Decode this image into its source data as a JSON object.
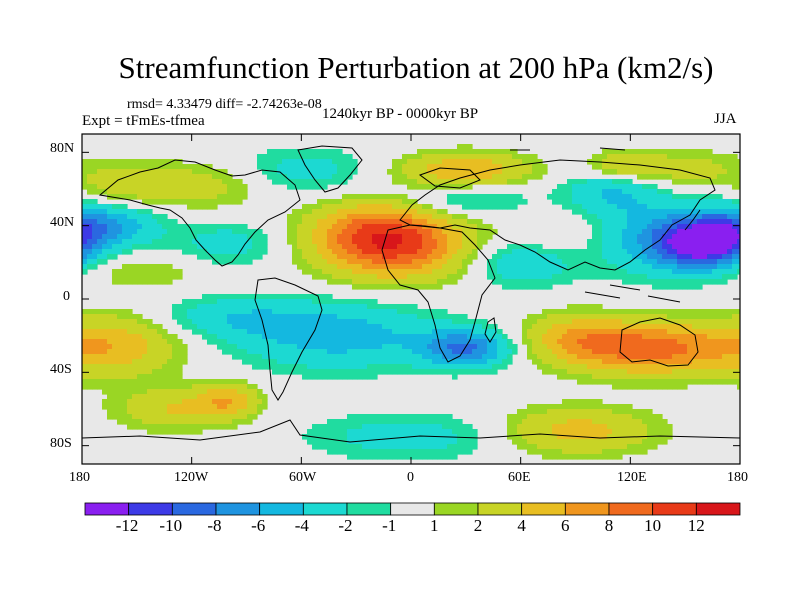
{
  "header": {
    "title": "Streamfunction Perturbation at 200 hPa (km2/s)",
    "rmsd_line": "rmsd= 4.33479 diff= -2.74263e-08",
    "experiment": "Expt = tFmEs-tfmea",
    "period": "1240kyr BP - 0000kyr BP",
    "season": "JJA"
  },
  "axes": {
    "lat_labels": [
      "80N",
      "40N",
      "0",
      "40S",
      "80S"
    ],
    "lon_labels": [
      "180",
      "120W",
      "60W",
      "0",
      "60E",
      "120E",
      "180"
    ]
  },
  "colorbar": {
    "labels": [
      "-12",
      "-10",
      "-8",
      "-6",
      "-4",
      "-2",
      "-1",
      "1",
      "2",
      "4",
      "6",
      "8",
      "10",
      "12"
    ],
    "colors": [
      "#8a1ff0",
      "#3d3ae6",
      "#2a68e0",
      "#1f94e0",
      "#14b8e0",
      "#1cd9d2",
      "#20dca0",
      "#e8e8e8",
      "#9ad624",
      "#c8d426",
      "#e8be22",
      "#f0961e",
      "#f06a1e",
      "#e83a18",
      "#d8161a"
    ]
  },
  "anomalies": [
    {
      "lon": 160,
      "lat": 30,
      "sx": 18,
      "sy": 9,
      "v": -12
    },
    {
      "lon": 140,
      "lat": 34,
      "sx": 30,
      "sy": 15,
      "v": -5
    },
    {
      "lon": -10,
      "lat": 30,
      "sx": 28,
      "sy": 13,
      "v": 11
    },
    {
      "lon": -25,
      "lat": 40,
      "sx": 22,
      "sy": 10,
      "v": 3
    },
    {
      "lon": 30,
      "lat": -27,
      "sx": 17,
      "sy": 7,
      "v": -8
    },
    {
      "lon": -40,
      "lat": -20,
      "sx": 40,
      "sy": 13,
      "v": -5
    },
    {
      "lon": -100,
      "lat": -10,
      "sx": 30,
      "sy": 8,
      "v": -3
    },
    {
      "lon": 130,
      "lat": -27,
      "sx": 33,
      "sy": 10,
      "v": 9
    },
    {
      "lon": 90,
      "lat": -20,
      "sx": 20,
      "sy": 9,
      "v": 4
    },
    {
      "lon": -160,
      "lat": -25,
      "sx": 25,
      "sy": 12,
      "v": 5
    },
    {
      "lon": -130,
      "lat": -60,
      "sx": 22,
      "sy": 8,
      "v": 4
    },
    {
      "lon": -100,
      "lat": -55,
      "sx": 12,
      "sy": 7,
      "v": 5
    },
    {
      "lon": 0,
      "lat": -75,
      "sx": 40,
      "sy": 9,
      "v": -3
    },
    {
      "lon": 90,
      "lat": -72,
      "sx": 30,
      "sy": 9,
      "v": 5
    },
    {
      "lon": 110,
      "lat": 60,
      "sx": 18,
      "sy": 9,
      "v": -4
    },
    {
      "lon": 115,
      "lat": 72,
      "sx": 14,
      "sy": 6,
      "v": 4
    },
    {
      "lon": 30,
      "lat": 70,
      "sx": 25,
      "sy": 7,
      "v": 6
    },
    {
      "lon": 30,
      "lat": 55,
      "sx": 25,
      "sy": 7,
      "v": -3
    },
    {
      "lon": -120,
      "lat": 62,
      "sx": 30,
      "sy": 9,
      "v": 3
    },
    {
      "lon": -60,
      "lat": 70,
      "sx": 25,
      "sy": 9,
      "v": -3
    },
    {
      "lon": -170,
      "lat": 40,
      "sx": 22,
      "sy": 8,
      "v": -6
    },
    {
      "lon": -150,
      "lat": 15,
      "sx": 25,
      "sy": 7,
      "v": 2
    },
    {
      "lon": -100,
      "lat": 30,
      "sx": 20,
      "sy": 8,
      "v": -3
    },
    {
      "lon": 60,
      "lat": 20,
      "sx": 20,
      "sy": 9,
      "v": -4
    },
    {
      "lon": 80,
      "lat": 35,
      "sx": 18,
      "sy": 9,
      "v": 2
    },
    {
      "lon": -160,
      "lat": 62,
      "sx": 15,
      "sy": 8,
      "v": 2
    },
    {
      "lon": 150,
      "lat": 70,
      "sx": 22,
      "sy": 8,
      "v": 3
    }
  ]
}
